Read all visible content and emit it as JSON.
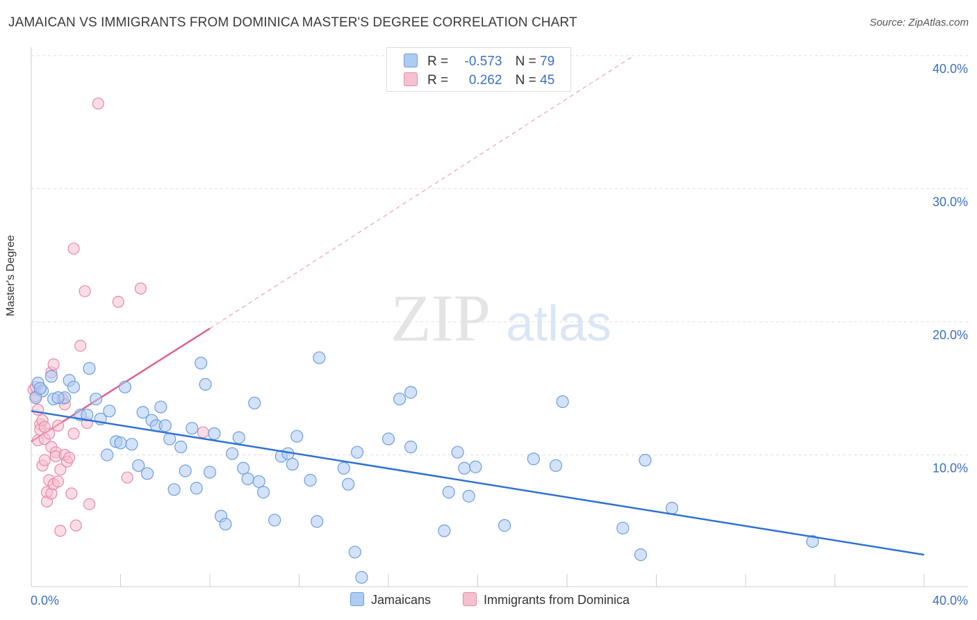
{
  "header": {
    "title": "JAMAICAN VS IMMIGRANTS FROM DOMINICA MASTER'S DEGREE CORRELATION CHART",
    "source": "Source: ZipAtlas.com"
  },
  "watermark": {
    "zip": "ZIP",
    "atlas": "atlas"
  },
  "legend": {
    "series1": {
      "r_label": "R =",
      "r_value": "-0.573",
      "n_label": "N =",
      "n_value": "79"
    },
    "series2": {
      "r_label": "R =",
      "r_value": "0.262",
      "n_label": "N =",
      "n_value": "45"
    }
  },
  "bottom_legend": {
    "series1": "Jamaicans",
    "series2": "Immigrants from Dominica"
  },
  "chart_data": {
    "type": "scatter",
    "title": "JAMAICAN VS IMMIGRANTS FROM DOMINICA MASTER'S DEGREE CORRELATION CHART",
    "xlabel": "",
    "ylabel": "Master's Degree",
    "xlim": [
      0,
      42
    ],
    "ylim": [
      0,
      42
    ],
    "x_tick_labels": [
      "0.0%",
      "40.0%"
    ],
    "y_ticks": [
      10,
      20,
      30,
      40
    ],
    "y_tick_labels": [
      "10.0%",
      "20.0%",
      "30.0%",
      "40.0%"
    ],
    "colors": {
      "series1": "#6b9ee0",
      "series1_fill": "#aecbf2",
      "series1_line": "#2f72d1",
      "series2": "#e68aa7",
      "series2_fill": "#f5c0d0",
      "series2_line": "#e06190",
      "axis_text": "#3a6fc4"
    },
    "series": [
      {
        "name": "Jamaicans",
        "points": [
          [
            0.3,
            15.4
          ],
          [
            0.5,
            14.8
          ],
          [
            0.2,
            14.3
          ],
          [
            0.9,
            15.9
          ],
          [
            1.0,
            14.2
          ],
          [
            1.5,
            14.3
          ],
          [
            1.7,
            15.6
          ],
          [
            1.9,
            15.1
          ],
          [
            2.2,
            13.0
          ],
          [
            2.5,
            13.0
          ],
          [
            2.6,
            16.5
          ],
          [
            2.9,
            14.2
          ],
          [
            3.1,
            12.7
          ],
          [
            3.4,
            10.0
          ],
          [
            3.5,
            13.3
          ],
          [
            3.8,
            11.0
          ],
          [
            4.0,
            10.9
          ],
          [
            4.2,
            15.1
          ],
          [
            4.5,
            10.8
          ],
          [
            4.8,
            9.2
          ],
          [
            5.0,
            13.2
          ],
          [
            5.2,
            8.6
          ],
          [
            5.4,
            12.6
          ],
          [
            5.6,
            12.2
          ],
          [
            5.8,
            13.6
          ],
          [
            6.0,
            12.2
          ],
          [
            6.2,
            11.2
          ],
          [
            6.4,
            7.4
          ],
          [
            6.7,
            10.6
          ],
          [
            6.9,
            8.8
          ],
          [
            7.2,
            12.0
          ],
          [
            7.4,
            7.5
          ],
          [
            7.6,
            16.9
          ],
          [
            7.8,
            15.3
          ],
          [
            8.0,
            8.7
          ],
          [
            8.2,
            11.6
          ],
          [
            8.5,
            5.4
          ],
          [
            8.7,
            4.8
          ],
          [
            9.0,
            10.1
          ],
          [
            9.3,
            11.3
          ],
          [
            9.5,
            9.0
          ],
          [
            9.7,
            8.2
          ],
          [
            10.0,
            13.9
          ],
          [
            10.2,
            8.0
          ],
          [
            10.4,
            7.2
          ],
          [
            10.9,
            5.1
          ],
          [
            11.2,
            9.9
          ],
          [
            11.5,
            10.1
          ],
          [
            11.7,
            9.3
          ],
          [
            11.9,
            11.4
          ],
          [
            12.5,
            8.1
          ],
          [
            12.8,
            5.0
          ],
          [
            12.9,
            17.3
          ],
          [
            14.0,
            9.0
          ],
          [
            14.2,
            7.8
          ],
          [
            14.5,
            2.7
          ],
          [
            14.6,
            10.2
          ],
          [
            14.8,
            0.8
          ],
          [
            16.0,
            11.2
          ],
          [
            16.5,
            14.2
          ],
          [
            17.0,
            10.6
          ],
          [
            17.0,
            14.7
          ],
          [
            18.5,
            4.3
          ],
          [
            18.7,
            7.2
          ],
          [
            19.1,
            10.2
          ],
          [
            19.4,
            9.0
          ],
          [
            19.6,
            6.9
          ],
          [
            19.9,
            9.1
          ],
          [
            21.2,
            4.7
          ],
          [
            22.5,
            9.7
          ],
          [
            23.5,
            9.2
          ],
          [
            23.8,
            14.0
          ],
          [
            26.5,
            4.5
          ],
          [
            27.3,
            2.5
          ],
          [
            27.5,
            9.6
          ],
          [
            28.7,
            6.0
          ],
          [
            35.0,
            3.5
          ],
          [
            0.4,
            15.0
          ],
          [
            1.2,
            14.3
          ]
        ],
        "trend": {
          "x": [
            0,
            40
          ],
          "y": [
            13.3,
            2.5
          ]
        }
      },
      {
        "name": "Immigrants from Dominica",
        "points": [
          [
            0.1,
            14.9
          ],
          [
            0.2,
            14.4
          ],
          [
            0.3,
            13.4
          ],
          [
            0.3,
            11.1
          ],
          [
            0.4,
            12.3
          ],
          [
            0.4,
            11.9
          ],
          [
            0.5,
            9.2
          ],
          [
            0.5,
            12.6
          ],
          [
            0.6,
            11.2
          ],
          [
            0.6,
            9.6
          ],
          [
            0.7,
            7.2
          ],
          [
            0.7,
            6.5
          ],
          [
            0.8,
            11.6
          ],
          [
            0.8,
            8.1
          ],
          [
            0.9,
            16.2
          ],
          [
            0.9,
            10.6
          ],
          [
            0.9,
            7.1
          ],
          [
            1.0,
            16.8
          ],
          [
            1.0,
            7.8
          ],
          [
            1.1,
            10.2
          ],
          [
            1.1,
            9.9
          ],
          [
            1.2,
            12.2
          ],
          [
            1.2,
            8.0
          ],
          [
            1.3,
            8.9
          ],
          [
            1.3,
            4.3
          ],
          [
            1.4,
            14.2
          ],
          [
            1.5,
            10.0
          ],
          [
            1.6,
            9.5
          ],
          [
            1.7,
            9.8
          ],
          [
            1.8,
            7.1
          ],
          [
            1.9,
            11.6
          ],
          [
            1.9,
            25.5
          ],
          [
            2.0,
            4.7
          ],
          [
            2.2,
            18.2
          ],
          [
            2.4,
            22.3
          ],
          [
            2.5,
            12.4
          ],
          [
            2.6,
            6.3
          ],
          [
            3.0,
            36.4
          ],
          [
            3.9,
            21.5
          ],
          [
            4.3,
            8.3
          ],
          [
            4.9,
            22.5
          ],
          [
            7.7,
            11.7
          ],
          [
            0.2,
            15.1
          ],
          [
            0.6,
            12.1
          ],
          [
            1.5,
            13.8
          ]
        ],
        "trend_solid": {
          "x": [
            0,
            8
          ],
          "y": [
            11.0,
            19.5
          ]
        },
        "trend_dashed": {
          "x": [
            8,
            27
          ],
          "y": [
            19.5,
            40.0
          ]
        }
      }
    ]
  }
}
